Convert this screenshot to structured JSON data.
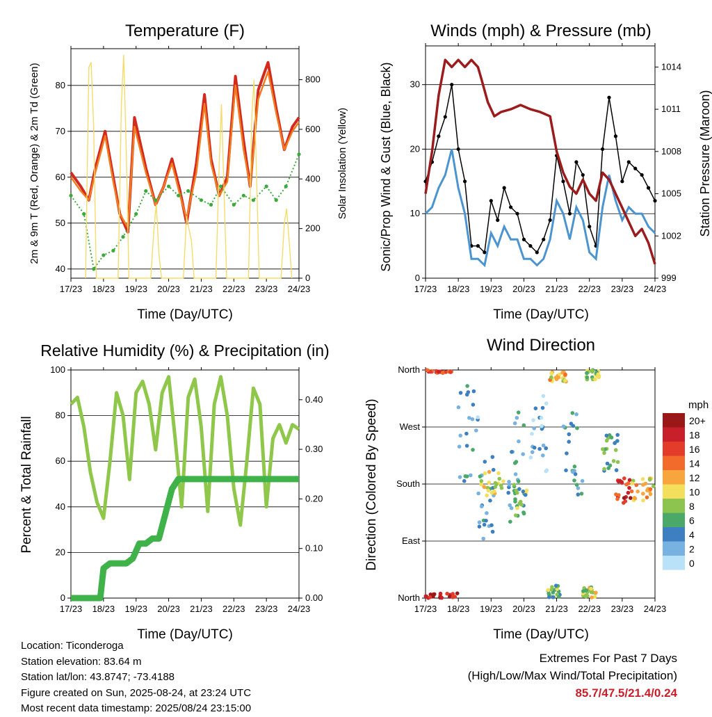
{
  "x_ticks": [
    "17/23",
    "18/23",
    "19/23",
    "20/23",
    "21/23",
    "22/23",
    "23/23",
    "24/23"
  ],
  "colors": {
    "temp2m": "#d42a1e",
    "temp9m": "#f07c22",
    "dewpoint": "#3aaa3a",
    "solar": "#f5dc6a",
    "wind": "#4c94d0",
    "gust": "#000000",
    "pressure": "#9a1c1c",
    "rh": "#8fc74a",
    "precip": "#3fb24a"
  },
  "chart_data": [
    {
      "type": "line",
      "title": "Temperature (F)",
      "xlabel": "Time (Day/UTC)",
      "ylabel": "2m & 9m T (Red, Orange) & 2m Td (Green)",
      "y2label": "Solar Insolation (Yellow)",
      "ylim": [
        38,
        88
      ],
      "yticks": [
        40,
        50,
        60,
        70,
        80
      ],
      "y2lim": [
        0,
        925
      ],
      "y2ticks": [
        0,
        200,
        400,
        600,
        800
      ],
      "xlim": [
        0,
        7
      ],
      "series": [
        {
          "key": "temp2m",
          "x": [
            0,
            0.3,
            0.55,
            0.75,
            1.05,
            1.3,
            1.5,
            1.75,
            1.95,
            2.3,
            2.6,
            2.85,
            3.1,
            3.35,
            3.55,
            3.85,
            4.1,
            4.3,
            4.55,
            4.8,
            5.05,
            5.3,
            5.5,
            5.75,
            6.05,
            6.3,
            6.55,
            6.8,
            7
          ],
          "y": [
            61,
            58,
            55,
            62,
            70,
            60,
            52,
            48,
            73,
            62,
            54,
            58,
            64,
            57,
            50,
            63,
            78,
            64,
            56,
            60,
            82,
            68,
            58,
            79,
            85,
            75,
            66,
            71,
            73
          ]
        },
        {
          "key": "temp9m",
          "x": [
            0,
            0.3,
            0.55,
            0.75,
            1.05,
            1.3,
            1.5,
            1.75,
            1.95,
            2.3,
            2.6,
            2.85,
            3.1,
            3.35,
            3.55,
            3.85,
            4.1,
            4.3,
            4.55,
            4.8,
            5.05,
            5.3,
            5.5,
            5.75,
            6.05,
            6.3,
            6.55,
            6.8,
            7
          ],
          "y": [
            60,
            57,
            55,
            61,
            69,
            59,
            52,
            49,
            71,
            61,
            54,
            58,
            63,
            56,
            51,
            61,
            76,
            63,
            56,
            59,
            80,
            66,
            58,
            77,
            83,
            74,
            66,
            70,
            72
          ]
        },
        {
          "key": "dewpoint",
          "x": [
            0,
            0.4,
            0.7,
            1.0,
            1.3,
            1.6,
            2.0,
            2.3,
            2.6,
            3.0,
            3.3,
            3.6,
            4.0,
            4.3,
            4.6,
            5.0,
            5.3,
            5.6,
            6.0,
            6.3,
            6.6,
            7
          ],
          "y": [
            56,
            52,
            40,
            43,
            44,
            47,
            52,
            57,
            55,
            58,
            56,
            57,
            55,
            54,
            58,
            54,
            56,
            55,
            58,
            55,
            58,
            65
          ]
        },
        {
          "key": "solar",
          "x": [
            0.45,
            0.55,
            0.62,
            0.7,
            0.78,
            1.45,
            1.55,
            1.62,
            1.7,
            1.78,
            2.45,
            2.55,
            2.62,
            2.7,
            2.78,
            3.45,
            3.55,
            3.62,
            3.7,
            3.78,
            4.45,
            4.55,
            4.62,
            4.7,
            4.78,
            5.45,
            5.55,
            5.62,
            5.7,
            5.78,
            6.45,
            6.55,
            6.62,
            6.7,
            6.78
          ],
          "y": [
            0,
            850,
            870,
            600,
            0,
            0,
            700,
            900,
            500,
            0,
            0,
            200,
            300,
            100,
            0,
            0,
            250,
            200,
            150,
            0,
            0,
            450,
            700,
            350,
            0,
            0,
            650,
            800,
            400,
            0,
            0,
            220,
            280,
            150,
            0
          ]
        }
      ]
    },
    {
      "type": "line",
      "title": "Winds (mph) & Pressure (mb)",
      "xlabel": "Time (Day/UTC)",
      "ylabel": "Sonic/Prop Wind & Gust (Blue, Black)",
      "y2label": "Station Pressure (Maroon)",
      "ylim": [
        0,
        36
      ],
      "yticks": [
        0,
        10,
        20,
        30
      ],
      "y2lim": [
        999,
        1015.5
      ],
      "y2ticks": [
        999,
        1002,
        1005,
        1008,
        1011,
        1014
      ],
      "xlim": [
        0,
        7
      ],
      "series": [
        {
          "key": "gust",
          "x": [
            0,
            0.2,
            0.4,
            0.6,
            0.8,
            1.0,
            1.2,
            1.4,
            1.6,
            1.8,
            2.0,
            2.2,
            2.4,
            2.6,
            2.8,
            3.0,
            3.2,
            3.4,
            3.6,
            3.8,
            4.0,
            4.2,
            4.4,
            4.6,
            4.8,
            5.0,
            5.2,
            5.4,
            5.6,
            5.8,
            6.0,
            6.2,
            6.4,
            6.6,
            6.8,
            7
          ],
          "y": [
            15,
            18,
            22,
            25,
            30,
            20,
            15,
            5,
            5,
            4,
            12,
            9,
            14,
            11,
            10,
            6,
            5,
            4,
            6,
            9,
            19,
            15,
            10,
            18,
            16,
            8,
            5,
            20,
            28,
            22,
            15,
            18,
            17,
            16,
            14,
            12
          ]
        },
        {
          "key": "wind",
          "x": [
            0,
            0.2,
            0.4,
            0.6,
            0.8,
            1.0,
            1.2,
            1.4,
            1.6,
            1.8,
            2.0,
            2.2,
            2.4,
            2.6,
            2.8,
            3.0,
            3.2,
            3.4,
            3.6,
            3.8,
            4.0,
            4.2,
            4.4,
            4.6,
            4.8,
            5.0,
            5.2,
            5.4,
            5.6,
            5.8,
            6.0,
            6.2,
            6.4,
            6.6,
            6.8,
            7
          ],
          "y": [
            10,
            11,
            14,
            16,
            20,
            14,
            10,
            3,
            3,
            2,
            7,
            5,
            8,
            6,
            6,
            3,
            3,
            2,
            3,
            6,
            12,
            10,
            6,
            11,
            9,
            4,
            3,
            11,
            16,
            12,
            9,
            11,
            10,
            10,
            8,
            7
          ]
        },
        {
          "key": "pressure",
          "x": [
            0,
            0.2,
            0.4,
            0.6,
            0.8,
            1.0,
            1.2,
            1.4,
            1.6,
            1.7,
            1.9,
            2.1,
            2.3,
            2.6,
            2.9,
            3.2,
            3.5,
            3.8,
            4.0,
            4.2,
            4.4,
            4.6,
            4.8,
            5.0,
            5.2,
            5.4,
            5.6,
            5.8,
            6.0,
            6.2,
            6.4,
            6.6,
            6.8,
            7
          ],
          "y": [
            1005,
            1008,
            1012,
            1014.5,
            1014,
            1014.5,
            1014,
            1014.5,
            1014,
            1013.2,
            1011.5,
            1010.5,
            1010.8,
            1011,
            1011.3,
            1011,
            1010.8,
            1010.5,
            1008,
            1006.5,
            1005.5,
            1005,
            1006,
            1005,
            1004.5,
            1006.5,
            1006,
            1005,
            1004,
            1003,
            1002,
            1002.5,
            1001.5,
            1000
          ]
        }
      ]
    },
    {
      "type": "line",
      "title": "Relative Humidity (%) & Precipitation (in)",
      "xlabel": "Time (Day/UTC)",
      "ylabel": "Percent & Total Rainfall",
      "ylim": [
        0,
        100
      ],
      "yticks": [
        0,
        20,
        40,
        60,
        80,
        100
      ],
      "y2lim": [
        0,
        0.46
      ],
      "y2ticks": [
        0.0,
        0.1,
        0.2,
        0.3,
        0.4
      ],
      "xlim": [
        0,
        7
      ],
      "series": [
        {
          "key": "rh",
          "x": [
            0,
            0.2,
            0.4,
            0.6,
            0.8,
            1.0,
            1.2,
            1.4,
            1.6,
            1.8,
            2.0,
            2.2,
            2.4,
            2.6,
            2.8,
            3.0,
            3.2,
            3.4,
            3.6,
            3.8,
            4.0,
            4.2,
            4.4,
            4.6,
            4.8,
            5.0,
            5.2,
            5.4,
            5.6,
            5.8,
            6.0,
            6.2,
            6.4,
            6.6,
            6.8,
            7
          ],
          "y": [
            85,
            88,
            75,
            55,
            42,
            35,
            60,
            90,
            80,
            52,
            90,
            95,
            85,
            65,
            90,
            97,
            70,
            40,
            88,
            96,
            75,
            38,
            85,
            97,
            80,
            48,
            32,
            60,
            92,
            85,
            40,
            70,
            76,
            68,
            76,
            74
          ]
        },
        {
          "key": "precip",
          "x": [
            0,
            0.2,
            0.5,
            0.7,
            0.9,
            1.0,
            1.2,
            1.5,
            1.7,
            1.9,
            2.1,
            2.3,
            2.5,
            2.7,
            2.9,
            3.1,
            3.3,
            3.5,
            3.8,
            4.2,
            4.6,
            5.0,
            5.4,
            5.8,
            6.2,
            6.6,
            7
          ],
          "y": [
            0.0,
            0.0,
            0.0,
            0.0,
            0.0,
            0.06,
            0.07,
            0.07,
            0.07,
            0.08,
            0.11,
            0.11,
            0.12,
            0.12,
            0.17,
            0.22,
            0.24,
            0.24,
            0.24,
            0.24,
            0.24,
            0.24,
            0.24,
            0.24,
            0.24,
            0.24,
            0.24
          ]
        }
      ]
    },
    {
      "type": "scatter",
      "title": "Wind Direction",
      "xlabel": "Time (Day/UTC)",
      "ylabel": "Direction (Colored By Speed)",
      "yticks": [
        "North",
        "East",
        "South",
        "West",
        "North"
      ],
      "ylim": [
        0,
        360
      ],
      "xlim": [
        0,
        7
      ],
      "legend": {
        "title": "mph",
        "position": "right",
        "labels": [
          "20+",
          "18",
          "16",
          "14",
          "12",
          "10",
          "8",
          "6",
          "4",
          "2",
          "0"
        ],
        "colors": [
          "#9a1818",
          "#c8202b",
          "#e43c2b",
          "#f26b2a",
          "#f9a53e",
          "#f3df5b",
          "#8dc34f",
          "#4aa869",
          "#3d7fc0",
          "#78b2e0",
          "#b9e1f7"
        ]
      },
      "clusters": [
        {
          "x": [
            0.0,
            0.8
          ],
          "y": [
            355,
            360
          ],
          "speed": 16
        },
        {
          "x": [
            0.0,
            1.0
          ],
          "y": [
            0,
            8
          ],
          "speed": 18
        },
        {
          "x": [
            1.0,
            1.6
          ],
          "y": [
            180,
            340
          ],
          "speed": 3
        },
        {
          "x": [
            1.6,
            2.1
          ],
          "y": [
            90,
            230
          ],
          "speed": 4
        },
        {
          "x": [
            1.7,
            2.4
          ],
          "y": [
            160,
            200
          ],
          "speed": 10
        },
        {
          "x": [
            2.5,
            3.0
          ],
          "y": [
            120,
            300
          ],
          "speed": 4
        },
        {
          "x": [
            2.7,
            3.1
          ],
          "y": [
            130,
            180
          ],
          "speed": 7
        },
        {
          "x": [
            3.2,
            3.7
          ],
          "y": [
            200,
            320
          ],
          "speed": 2
        },
        {
          "x": [
            3.7,
            4.1
          ],
          "y": [
            0,
            20
          ],
          "speed": 7
        },
        {
          "x": [
            3.8,
            4.3
          ],
          "y": [
            340,
            360
          ],
          "speed": 11
        },
        {
          "x": [
            4.2,
            4.8
          ],
          "y": [
            160,
            300
          ],
          "speed": 4
        },
        {
          "x": [
            4.8,
            5.2
          ],
          "y": [
            0,
            18
          ],
          "speed": 9
        },
        {
          "x": [
            4.9,
            5.3
          ],
          "y": [
            345,
            360
          ],
          "speed": 8
        },
        {
          "x": [
            5.4,
            5.9
          ],
          "y": [
            200,
            260
          ],
          "speed": 6
        },
        {
          "x": [
            5.8,
            6.3
          ],
          "y": [
            150,
            190
          ],
          "speed": 17
        },
        {
          "x": [
            6.3,
            7.0
          ],
          "y": [
            150,
            190
          ],
          "speed": 11
        }
      ]
    }
  ],
  "info": {
    "location": "Location: Ticonderoga",
    "elevation": "Station elevation: 83.64 m",
    "latlon": "Station lat/lon: 43.8747; -73.4188",
    "created": "Figure created on Sun, 2025-08-24, at 23:24 UTC",
    "recent": "Most recent data timestamp: 2025/08/24 23:15:00"
  },
  "extremes": {
    "title": "Extremes For Past 7 Days",
    "subtitle": "(High/Low/Max Wind/Total Precipitation)",
    "values": "85.7/47.5/21.4/0.24"
  }
}
